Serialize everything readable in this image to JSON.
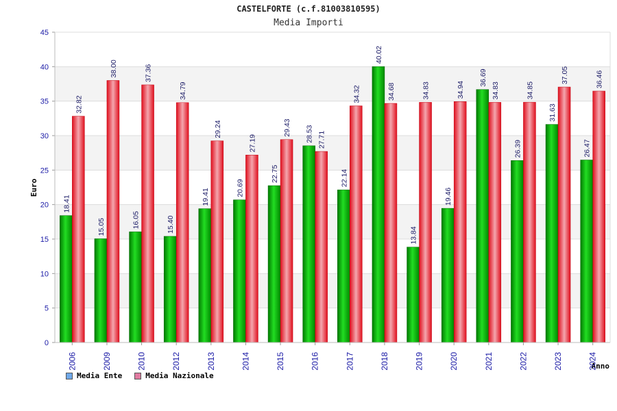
{
  "chart_data": {
    "type": "bar",
    "title": "CASTELFORTE (c.f.81003810595)",
    "subtitle": "Media Importi",
    "ylabel": "Euro",
    "xlabel": "Anno",
    "ylim": [
      0,
      45
    ],
    "yticks": [
      0,
      5,
      10,
      15,
      20,
      25,
      30,
      35,
      40,
      45
    ],
    "categories": [
      "2006",
      "2009",
      "2010",
      "2012",
      "2013",
      "2014",
      "2015",
      "2016",
      "2017",
      "2018",
      "2019",
      "2020",
      "2021",
      "2022",
      "2023",
      "2024"
    ],
    "series": [
      {
        "name": "Media Ente",
        "color": "#00aa00",
        "values": [
          18.41,
          15.05,
          16.05,
          15.4,
          19.41,
          20.69,
          22.75,
          28.53,
          22.14,
          40.02,
          13.84,
          19.46,
          36.69,
          26.39,
          31.63,
          26.47
        ],
        "labels": [
          "18.41",
          "15.05",
          "16.05",
          "15.40",
          "19.41",
          "20.69",
          "22.75",
          "28.53",
          "22.14",
          "40.02",
          "13.84",
          "19.46",
          "36.69",
          "26.39",
          "31.63",
          "26.47"
        ]
      },
      {
        "name": "Media Nazionale",
        "color": "#e8182a",
        "values": [
          32.82,
          38.0,
          37.36,
          34.79,
          29.24,
          27.19,
          29.43,
          27.71,
          34.32,
          34.68,
          34.83,
          34.94,
          34.83,
          34.85,
          37.05,
          36.46
        ],
        "labels": [
          "32.82",
          "38.00",
          "37.36",
          "34.79",
          "29.24",
          "27.19",
          "29.43",
          "27.71",
          "34.32",
          "34.68",
          "34.83",
          "34.94",
          "34.83",
          "34.85",
          "37.05",
          "36.46"
        ]
      }
    ],
    "legend": [
      {
        "label": "Media Ente",
        "color": "#6fa8e8"
      },
      {
        "label": "Media Nazionale",
        "color": "#e07aa0"
      }
    ],
    "grid": true,
    "legend_position": "bottom-left"
  }
}
